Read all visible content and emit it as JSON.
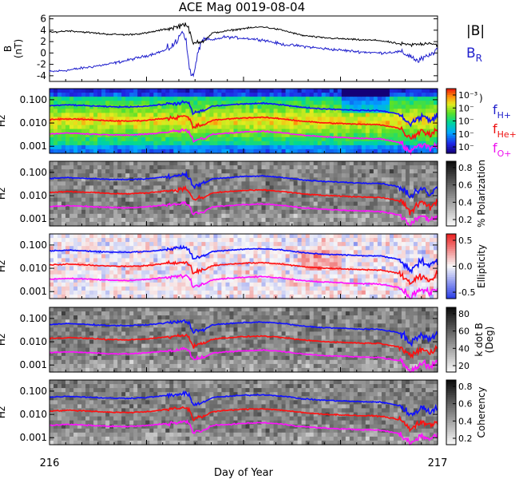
{
  "title": "ACE Mag 0019-08-04",
  "xlabel": "Day of Year",
  "x_ticks": [
    "216",
    "217"
  ],
  "panel_ylabel": "Hz",
  "freq_ticks": [
    "0.100",
    "0.010",
    "0.001"
  ],
  "legend": {
    "top": [
      {
        "text": "|B|",
        "color": "#000000"
      },
      {
        "text": "B",
        "sub": "R",
        "color": "#2222cc"
      }
    ],
    "freq": [
      {
        "text": "f",
        "sub": "H+",
        "color": "#2222cc"
      },
      {
        "text": "f",
        "sub": "He+",
        "color": "#ee1111"
      },
      {
        "text": "f",
        "sub": "O+",
        "color": "#ee11ee"
      }
    ]
  },
  "colors": {
    "B": "#000000",
    "BR": "#1e1ecc",
    "fH": "#1010ff",
    "fHe": "#ff1010",
    "fO": "#ff10ff"
  },
  "colorbars": [
    {
      "name": "power",
      "scheme": "rainbow",
      "label": ")",
      "ticks": [
        "10⁻³",
        "10⁻",
        "10⁻",
        "10⁻",
        "10⁻"
      ]
    },
    {
      "name": "polarization",
      "scheme": "gray",
      "label": "% Polarization",
      "ticks": [
        "0.8",
        "0.6",
        "0.4",
        "0.2"
      ]
    },
    {
      "name": "ellipticity",
      "scheme": "bwr",
      "label": "Ellipticity",
      "ticks": [
        "0.5",
        "0.0",
        "-0.5"
      ]
    },
    {
      "name": "kdotb",
      "scheme": "gray",
      "label": "k dot B (Deg)",
      "label_lines": [
        "k dot B",
        "(Deg)"
      ],
      "ticks": [
        "80",
        "60",
        "40",
        "20"
      ]
    },
    {
      "name": "coherency",
      "scheme": "gray",
      "label": "Coherency",
      "ticks": [
        "0.8",
        "0.6",
        "0.4",
        "0.2"
      ]
    }
  ],
  "chart_data": {
    "type": "line",
    "title": "ACE Mag 0019-08-04",
    "xlabel": "Day of Year",
    "xlim": [
      216,
      217
    ],
    "panels": [
      {
        "name": "magnetic-field",
        "ylabel": "B (nT)",
        "ylim": [
          -5,
          6.5
        ],
        "yticks": [
          6,
          4,
          2,
          0,
          -2,
          -4
        ],
        "series": [
          {
            "name": "|B|",
            "x": [
              216.0,
              216.05,
              216.1,
              216.15,
              216.2,
              216.25,
              216.3,
              216.33,
              216.35,
              216.36,
              216.37,
              216.38,
              216.4,
              216.42,
              216.45,
              216.5,
              216.55,
              216.6,
              216.65,
              216.7,
              216.75,
              216.8,
              216.85,
              216.9,
              216.93,
              216.96,
              216.98,
              217.0
            ],
            "values": [
              3.6,
              3.9,
              3.6,
              3.3,
              3.2,
              3.5,
              4.2,
              4.6,
              5.2,
              4.0,
              1.5,
              2.0,
              2.2,
              3.5,
              3.8,
              4.3,
              4.6,
              4.0,
              3.1,
              2.7,
              2.5,
              2.3,
              2.2,
              1.6,
              1.4,
              1.6,
              1.8,
              1.4
            ]
          },
          {
            "name": "B",
            "x": [
              216.0,
              216.05,
              216.1,
              216.15,
              216.2,
              216.25,
              216.3,
              216.33,
              216.34,
              216.35,
              216.36,
              216.37,
              216.38,
              216.39,
              216.4,
              216.42,
              216.45,
              216.5,
              216.55,
              216.6,
              216.65,
              216.7,
              216.75,
              216.8,
              216.85,
              216.9,
              216.93,
              216.95,
              216.96,
              216.98,
              217.0
            ],
            "values": [
              -3.3,
              -3.0,
              -2.5,
              -2.0,
              -1.3,
              -0.5,
              0.5,
              2.0,
              4.0,
              3.0,
              -2.5,
              -4.4,
              -1.0,
              2.0,
              2.5,
              2.2,
              2.8,
              2.6,
              2.3,
              1.5,
              1.2,
              0.8,
              0.5,
              0.2,
              0.0,
              0.2,
              -0.5,
              -1.5,
              -1.0,
              -0.5,
              0.8
            ]
          }
        ]
      },
      {
        "name": "gyrofrequencies",
        "ylabel": "Hz",
        "scale": "log",
        "ylim": [
          0.0005,
          0.3
        ],
        "yticks": [
          0.1,
          0.01,
          0.001
        ],
        "series": [
          {
            "name": "fH+",
            "x": [
              216.0,
              216.05,
              216.1,
              216.15,
              216.2,
              216.25,
              216.3,
              216.33,
              216.35,
              216.36,
              216.37,
              216.38,
              216.4,
              216.42,
              216.45,
              216.5,
              216.55,
              216.6,
              216.65,
              216.7,
              216.75,
              216.8,
              216.85,
              216.9,
              216.93,
              216.96,
              216.98,
              217.0
            ],
            "values": [
              0.055,
              0.06,
              0.055,
              0.05,
              0.049,
              0.053,
              0.064,
              0.07,
              0.08,
              0.061,
              0.023,
              0.03,
              0.034,
              0.053,
              0.058,
              0.066,
              0.07,
              0.061,
              0.047,
              0.041,
              0.038,
              0.035,
              0.034,
              0.024,
              0.008,
              0.02,
              0.012,
              0.021
            ]
          },
          {
            "name": "fHe+",
            "x": [
              216.0,
              216.05,
              216.1,
              216.15,
              216.2,
              216.25,
              216.3,
              216.33,
              216.35,
              216.36,
              216.37,
              216.38,
              216.4,
              216.42,
              216.45,
              216.5,
              216.55,
              216.6,
              216.65,
              216.7,
              216.75,
              216.8,
              216.85,
              216.9,
              216.93,
              216.96,
              216.98,
              217.0
            ],
            "values": [
              0.014,
              0.015,
              0.014,
              0.0125,
              0.012,
              0.013,
              0.016,
              0.0175,
              0.02,
              0.015,
              0.0058,
              0.0075,
              0.0085,
              0.013,
              0.0145,
              0.0165,
              0.0175,
              0.015,
              0.012,
              0.0103,
              0.0095,
              0.0088,
              0.0085,
              0.006,
              0.002,
              0.005,
              0.003,
              0.0053
            ]
          },
          {
            "name": "fO+",
            "x": [
              216.0,
              216.05,
              216.1,
              216.15,
              216.2,
              216.25,
              216.3,
              216.33,
              216.35,
              216.36,
              216.37,
              216.38,
              216.4,
              216.42,
              216.45,
              216.5,
              216.55,
              216.6,
              216.65,
              216.7,
              216.75,
              216.8,
              216.85,
              216.9,
              216.93,
              216.96,
              216.98,
              217.0
            ],
            "values": [
              0.0034,
              0.0037,
              0.0034,
              0.0031,
              0.003,
              0.0033,
              0.004,
              0.0044,
              0.005,
              0.0038,
              0.0015,
              0.0019,
              0.0021,
              0.0033,
              0.0036,
              0.0041,
              0.0044,
              0.0038,
              0.003,
              0.0026,
              0.0024,
              0.0022,
              0.0021,
              0.0015,
              0.0005,
              0.0013,
              0.0008,
              0.0013
            ]
          }
        ]
      }
    ],
    "spectrogram_panels": [
      "power",
      "polarization",
      "ellipticity",
      "kdotb",
      "coherency"
    ],
    "grid": false
  }
}
